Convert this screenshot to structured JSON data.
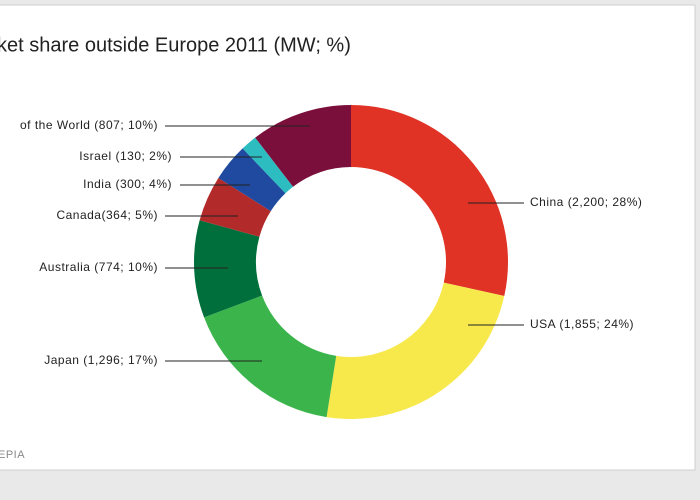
{
  "chart_data": {
    "type": "donut",
    "title": "ket share outside Europe 2011 (MW; %)",
    "source": "EPIA",
    "categories": [
      "China",
      "USA",
      "Japan",
      "Australia",
      "Canada",
      "India",
      "Israel",
      "of the World"
    ],
    "values": [
      2200,
      1855,
      1296,
      774,
      364,
      300,
      130,
      807
    ],
    "value_labels": [
      "China (2,200; 28%)",
      "USA (1,855; 24%)",
      "Japan (1,296; 17%)",
      "Australia (774; 10%)",
      "Canada(364; 5%)",
      "India (300; 4%)",
      "Israel (130; 2%)",
      "of the World (807; 10%)"
    ],
    "colors": [
      "#e03326",
      "#f7e94c",
      "#3bb54b",
      "#006f3b",
      "#b32a2a",
      "#1f4a9f",
      "#2dbdc1",
      "#7a0f3b"
    ]
  }
}
